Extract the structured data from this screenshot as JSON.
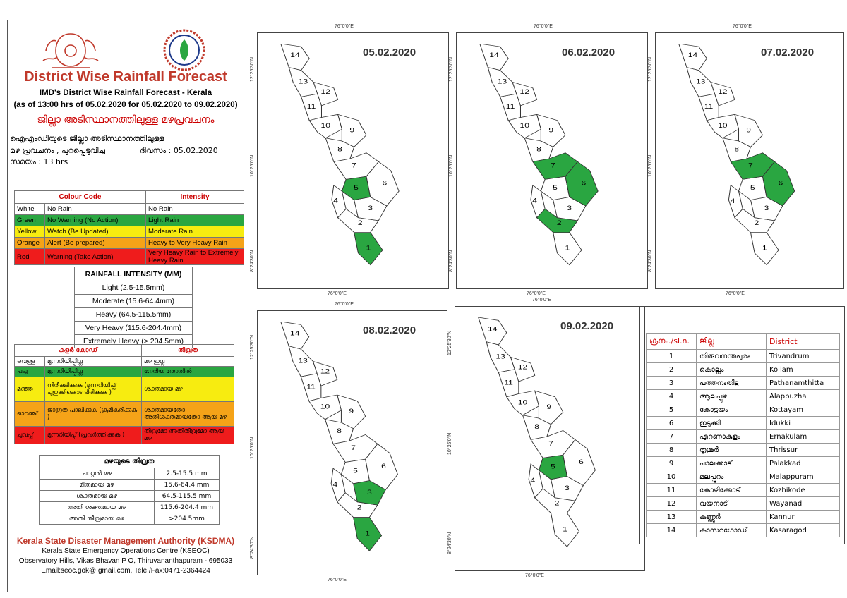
{
  "header": {
    "title": "District Wise Rainfall Forecast",
    "subtitle1": "IMD's District Wise Rainfall Forecast - Kerala",
    "subtitle2": "(as of 13:00 hrs of 05.02.2020  for 05.02.2020  to 09.02.2020)",
    "ml_title": "ജില്ലാ അടിസ്ഥാനത്തിലുള്ള മഴപ്രവചനം",
    "ml_line1": "ഐഎംഡിയുടെ ജില്ലാ     അടിസ്ഥാനത്തിലുള്ള",
    "ml_line2a": "മഴ പ്രവചനം   , പുറപ്പെടുവിച്ച",
    "ml_line2b": "ദിവസം : 05.02.2020",
    "ml_line3": "സമയം : 13  hrs"
  },
  "colour_code": {
    "head_code": "Colour Code",
    "head_int": "Intensity",
    "rows": [
      {
        "c1": "White",
        "c2": "No Rain",
        "c3": "No Rain"
      },
      {
        "c1": "Green",
        "c2": "No Warning (No Action)",
        "c3": "Light Rain"
      },
      {
        "c1": "Yellow",
        "c2": "Watch (Be Updated)",
        "c3": "Moderate Rain"
      },
      {
        "c1": "Orange",
        "c2": "Alert (Be prepared)",
        "c3": "Heavy to Very Heavy Rain"
      },
      {
        "c1": "Red",
        "c2": "Warning (Take Action)",
        "c3": "Very Heavy Rain to Extremely Heavy Rain"
      }
    ]
  },
  "rainfall_intensity": {
    "head": "RAINFALL INTENSITY (MM)",
    "rows": [
      "Light (2.5-15.5mm)",
      "Moderate (15.6-64.4mm)",
      "Heavy (64.5-115.5mm)",
      "Very Heavy (115.6-204.4mm)",
      "Extremely Heavy (> 204.5mm)"
    ]
  },
  "ml_colour_code": {
    "head_code": "കളർ കോഡ്",
    "head_int": "തീവ്രത",
    "rows": [
      {
        "c1": "വെള്ള",
        "c2": "മുന്നറിയിപ്പില്ല",
        "c3": "മഴ ഇല്ല"
      },
      {
        "c1": "പച്ച",
        "c2": "മുന്നറിയിപ്പില്ല",
        "c3": "നേരിയ തോതിൽ"
      },
      {
        "c1": "മഞ്ഞ",
        "c2": "നിരീക്ഷിക്കുക (മുന്നറിയിപ്പ് പുതുക്കികൊണ്ടിരിക്കുക )",
        "c3": "ശക്തമായ മഴ"
      },
      {
        "c1": "ഓറഞ്ച്",
        "c2": "ജാഗ്രത പാലിക്കുക (ക്രമീകരിക്കുക )",
        "c3": "ശക്തമായതോ അതിശക്തമായതോ ആയ മഴ"
      },
      {
        "c1": "ചുവപ്പ്",
        "c2": "മുന്നറിയിപ്പ് (പ്രവർത്തിക്കുക )",
        "c3": "തീവ്രമോ അതിതീവ്രമോ ആയ മഴ"
      }
    ]
  },
  "ml_intensity": {
    "head": "മഴയുടെ തീവ്രത",
    "rows": [
      {
        "k": "ചാറ്റൽ മഴ",
        "v": "2.5-15.5 mm"
      },
      {
        "k": "മിതമായ മഴ",
        "v": "15.6-64.4 mm"
      },
      {
        "k": "ശക്തമായ മഴ",
        "v": "64.5-115.5 mm"
      },
      {
        "k": "അതി ശക്തമായ മഴ",
        "v": "115.6-204.4 mm"
      },
      {
        "k": "അതി തീവ്രമായ മഴ",
        "v": ">204.5mm"
      }
    ]
  },
  "footer": {
    "org": "Kerala State Disaster Management Authority (KSDMA)",
    "line1": "Kerala State Emergency Operations Centre (KSEOC)",
    "line2": "Observatory Hills, Vikas Bhavan P O, Thiruvananthapuram - 695033",
    "line3": "Email:seoc.gok@ gmail.com, Tele /Fax:0471-2364424"
  },
  "coords": {
    "lon": "76°0'0\"E",
    "lat1": "12°25'30\"N",
    "lat2": "10°25'0\"N",
    "lat3": "8°24'30\"N"
  },
  "colors": {
    "green": "#2aa641",
    "white": "#ffffff"
  },
  "maps": [
    {
      "date": "05.02.2020",
      "green": [
        1,
        5
      ]
    },
    {
      "date": "06.02.2020",
      "green": [
        2,
        6,
        7
      ]
    },
    {
      "date": "07.02.2020",
      "green": [
        6,
        7
      ]
    },
    {
      "date": "08.02.2020",
      "green": [
        1,
        3
      ]
    },
    {
      "date": "09.02.2020",
      "green": [
        5
      ]
    }
  ],
  "district_table": {
    "head_no": "ക്രനം./sl.n.",
    "head_ml": "ജില്ല",
    "head_en": "District",
    "rows": [
      {
        "n": "1",
        "ml": "തിരുവനന്തപുരം",
        "en": "Trivandrum"
      },
      {
        "n": "2",
        "ml": "കൊല്ലം",
        "en": "Kollam"
      },
      {
        "n": "3",
        "ml": "പത്തനംതിട്ട",
        "en": "Pathanamthitta"
      },
      {
        "n": "4",
        "ml": "ആലപ്പുഴ",
        "en": "Alappuzha"
      },
      {
        "n": "5",
        "ml": "കോട്ടയം",
        "en": "Kottayam"
      },
      {
        "n": "6",
        "ml": "ഇടുക്കി",
        "en": "Idukki"
      },
      {
        "n": "7",
        "ml": "എറണാകുളം",
        "en": "Ernakulam"
      },
      {
        "n": "8",
        "ml": "തൃശൂർ",
        "en": "Thrissur"
      },
      {
        "n": "9",
        "ml": "പാലക്കാട്",
        "en": "Palakkad"
      },
      {
        "n": "10",
        "ml": "മലപ്പുറം",
        "en": "Malappuram"
      },
      {
        "n": "11",
        "ml": "കോഴിക്കോട്",
        "en": "Kozhikode"
      },
      {
        "n": "12",
        "ml": "വയനാട്",
        "en": "Wayanad"
      },
      {
        "n": "13",
        "ml": "കണ്ണൂർ",
        "en": "Kannur"
      },
      {
        "n": "14",
        "ml": "കാസറഗോഡ്",
        "en": "Kasaragod"
      }
    ]
  }
}
